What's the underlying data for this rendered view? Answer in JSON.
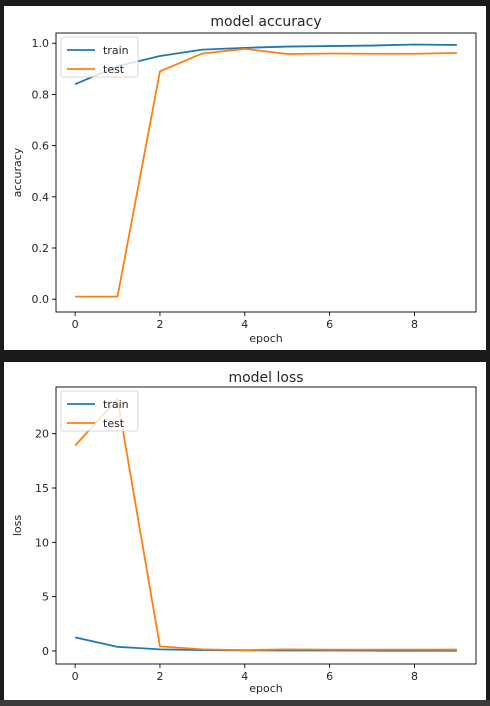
{
  "chart_data": [
    {
      "id": "accuracy",
      "type": "line",
      "title": "model accuracy",
      "xlabel": "epoch",
      "ylabel": "accuracy",
      "xlim": [
        -0.45,
        9.45
      ],
      "ylim": [
        -0.05,
        1.04
      ],
      "xticks": [
        0,
        2,
        4,
        6,
        8
      ],
      "xtick_labels": [
        "0",
        "2",
        "4",
        "6",
        "8"
      ],
      "yticks": [
        0.0,
        0.2,
        0.4,
        0.6,
        0.8,
        1.0
      ],
      "ytick_labels": [
        "0.0",
        "0.2",
        "0.4",
        "0.6",
        "0.8",
        "1.0"
      ],
      "grid": false,
      "legend_position": "top-left",
      "x": [
        0,
        1,
        2,
        3,
        4,
        5,
        6,
        7,
        8,
        9
      ],
      "series": [
        {
          "name": "train",
          "color": "#1f77b4",
          "values": [
            0.84,
            0.91,
            0.95,
            0.975,
            0.982,
            0.987,
            0.989,
            0.991,
            0.995,
            0.993
          ]
        },
        {
          "name": "test",
          "color": "#ff7f0e",
          "values": [
            0.01,
            0.01,
            0.89,
            0.96,
            0.978,
            0.958,
            0.96,
            0.959,
            0.959,
            0.962
          ]
        }
      ]
    },
    {
      "id": "loss",
      "type": "line",
      "title": "model loss",
      "xlabel": "epoch",
      "ylabel": "loss",
      "xlim": [
        -0.45,
        9.45
      ],
      "ylim": [
        -1.2,
        24.3
      ],
      "xticks": [
        0,
        2,
        4,
        6,
        8
      ],
      "xtick_labels": [
        "0",
        "2",
        "4",
        "6",
        "8"
      ],
      "yticks": [
        0,
        5,
        10,
        15,
        20
      ],
      "ytick_labels": [
        "0",
        "5",
        "10",
        "15",
        "20"
      ],
      "grid": false,
      "legend_position": "top-left",
      "x": [
        0,
        1,
        2,
        3,
        4,
        5,
        6,
        7,
        8,
        9
      ],
      "series": [
        {
          "name": "train",
          "color": "#1f77b4",
          "values": [
            1.25,
            0.38,
            0.15,
            0.08,
            0.06,
            0.04,
            0.04,
            0.03,
            0.02,
            0.02
          ]
        },
        {
          "name": "test",
          "color": "#ff7f0e",
          "values": [
            18.9,
            23.2,
            0.42,
            0.15,
            0.08,
            0.15,
            0.12,
            0.12,
            0.12,
            0.13
          ]
        }
      ]
    }
  ]
}
